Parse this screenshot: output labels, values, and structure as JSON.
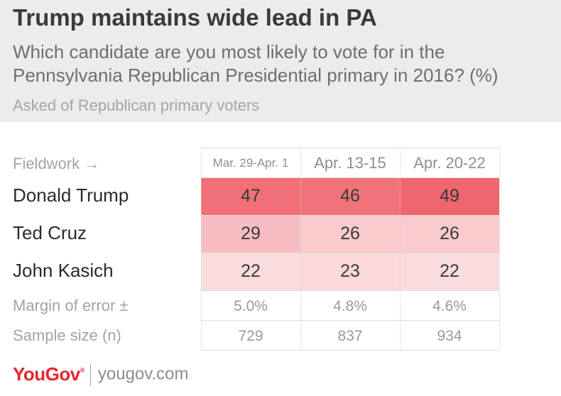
{
  "title": "Trump maintains wide lead in PA",
  "subtitle": "Which candidate are you most likely to vote for in the Pennsylvania Republican Presidential primary in 2016? (%)",
  "note": "Asked of Republican primary voters",
  "fieldwork_label": "Fieldwork →",
  "footer": {
    "brand": "YouGov",
    "brand_mark": "®",
    "site": "yougov.com"
  },
  "colors": {
    "header_bg": "#ececec",
    "brand": "#e3262c",
    "high": "#f0666e",
    "low": "#fbdcde"
  },
  "chart_data": {
    "type": "table",
    "title": "Trump maintains wide lead in PA",
    "columns": [
      "Mar. 29-Apr. 1",
      "Apr. 13-15",
      "Apr. 20-22"
    ],
    "rows": [
      {
        "name": "Donald Trump",
        "values": [
          47,
          46,
          49
        ]
      },
      {
        "name": "Ted Cruz",
        "values": [
          29,
          26,
          26
        ]
      },
      {
        "name": "John Kasich",
        "values": [
          22,
          23,
          22
        ]
      }
    ],
    "stats": [
      {
        "name": "Margin of error ±",
        "values": [
          "5.0%",
          "4.8%",
          "4.6%"
        ]
      },
      {
        "name": "Sample size (n)",
        "values": [
          "729",
          "837",
          "934"
        ]
      }
    ]
  }
}
